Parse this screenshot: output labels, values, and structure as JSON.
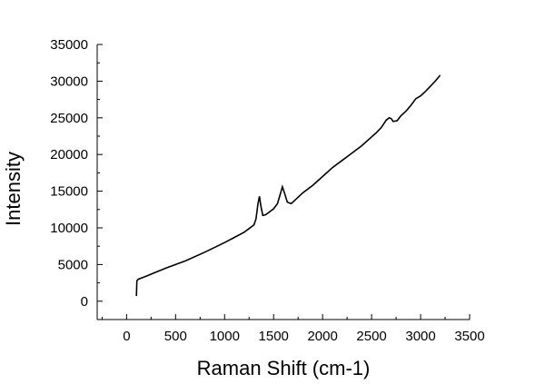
{
  "chart_data": {
    "type": "line",
    "title": "",
    "xlabel": "Raman Shift (cm-1)",
    "ylabel": "Intensity",
    "xlim": [
      -300,
      3500
    ],
    "ylim": [
      -2500,
      35000
    ],
    "x_ticks": [
      0,
      500,
      1000,
      1500,
      2000,
      2500,
      3000,
      3500
    ],
    "y_ticks": [
      0,
      5000,
      10000,
      15000,
      20000,
      25000,
      30000,
      35000
    ],
    "x_tick_labels": [
      "0",
      "500",
      "1000",
      "1500",
      "2000",
      "2500",
      "3000",
      "3500"
    ],
    "y_tick_labels": [
      "0",
      "5000",
      "10000",
      "15000",
      "20000",
      "25000",
      "30000",
      "35000"
    ],
    "grid": false,
    "line_color": "#000000",
    "series": [
      {
        "x": [
          100,
          105,
          120,
          200,
          400,
          600,
          800,
          1000,
          1100,
          1200,
          1250,
          1300,
          1320,
          1340,
          1355,
          1370,
          1390,
          1420,
          1460,
          1500,
          1540,
          1570,
          1590,
          1610,
          1640,
          1680,
          1720,
          1800,
          1900,
          2000,
          2100,
          2200,
          2300,
          2400,
          2500,
          2550,
          2600,
          2650,
          2680,
          2700,
          2720,
          2760,
          2800,
          2850,
          2900,
          2950,
          3000,
          3050,
          3100,
          3150,
          3200
        ],
        "y": [
          700,
          2800,
          3000,
          3400,
          4500,
          5500,
          6700,
          8000,
          8700,
          9400,
          9900,
          10400,
          11200,
          13200,
          14300,
          13000,
          11700,
          11800,
          12200,
          12600,
          13300,
          14700,
          15600,
          14800,
          13500,
          13300,
          13800,
          14800,
          15800,
          17000,
          18200,
          19200,
          20200,
          21200,
          22400,
          23000,
          23700,
          24700,
          25000,
          24900,
          24500,
          24600,
          25300,
          25900,
          26700,
          27600,
          28000,
          28600,
          29300,
          30000,
          30800
        ]
      }
    ]
  }
}
